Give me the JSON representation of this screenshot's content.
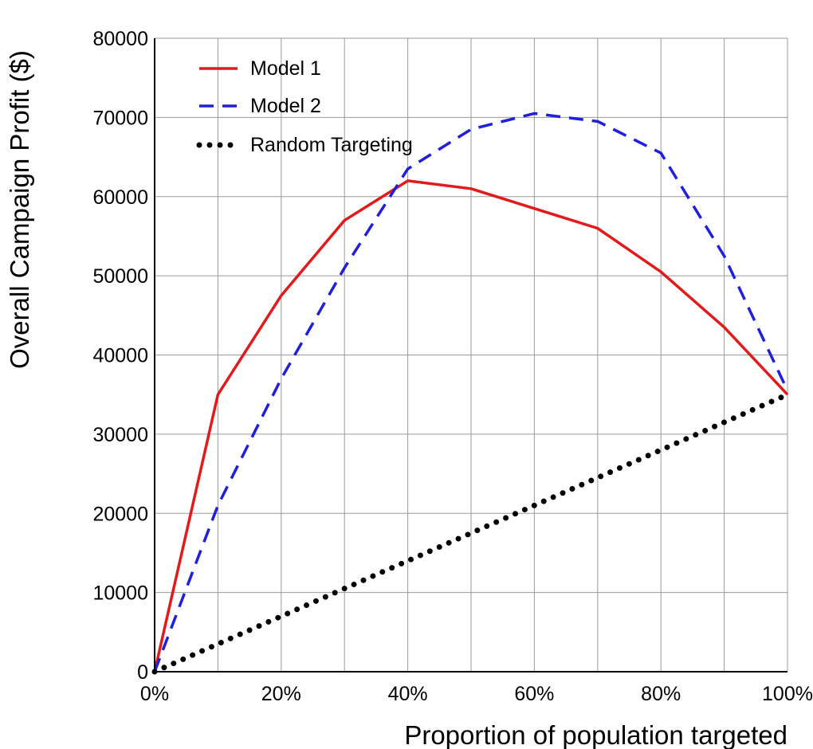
{
  "chart_data": {
    "type": "line",
    "title": "",
    "xlabel": "Proportion of population targeted",
    "ylabel": "Overall Campaign Profit ($)",
    "x": [
      0,
      10,
      20,
      30,
      40,
      50,
      60,
      70,
      80,
      90,
      100
    ],
    "xlim": [
      0,
      100
    ],
    "ylim": [
      0,
      80000
    ],
    "x_ticks": [
      0,
      20,
      40,
      60,
      80,
      100
    ],
    "x_tick_labels": [
      "0%",
      "20%",
      "40%",
      "60%",
      "80%",
      "100%"
    ],
    "y_ticks": [
      0,
      10000,
      20000,
      30000,
      40000,
      50000,
      60000,
      70000,
      80000
    ],
    "y_tick_labels": [
      "0",
      "10000",
      "20000",
      "30000",
      "40000",
      "50000",
      "60000",
      "70000",
      "80000"
    ],
    "grid": true,
    "legend_position": "top-left",
    "series": [
      {
        "name": "Model 1",
        "color": "#e31a1c",
        "style": "solid",
        "values": [
          0,
          35000,
          47500,
          57000,
          62000,
          61000,
          58500,
          56000,
          50500,
          43500,
          35000
        ]
      },
      {
        "name": "Model 2",
        "color": "#1f1fdd",
        "style": "dashed",
        "values": [
          0,
          21000,
          37000,
          51000,
          63500,
          68500,
          70500,
          69500,
          65500,
          52500,
          35500
        ]
      },
      {
        "name": "Random Targeting",
        "color": "#000000",
        "style": "dotted",
        "values": [
          0,
          3500,
          7000,
          10500,
          14000,
          17500,
          21000,
          24500,
          28000,
          31500,
          35000
        ]
      }
    ]
  }
}
